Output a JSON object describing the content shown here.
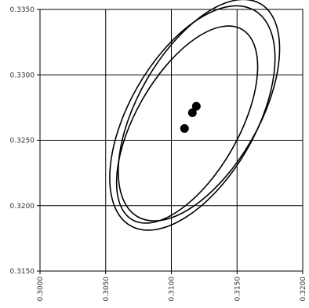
{
  "chart_data": {
    "type": "scatter",
    "xlim": [
      0.3,
      0.32
    ],
    "ylim": [
      0.315,
      0.335
    ],
    "x_ticks": [
      "0.3000",
      "0.3050",
      "0.3100",
      "0.3150",
      "0.3200"
    ],
    "y_ticks": [
      "0.3150",
      "0.3200",
      "0.3250",
      "0.3300",
      "0.3350"
    ],
    "grid": true,
    "points": [
      {
        "x": 0.311,
        "y": 0.3259
      },
      {
        "x": 0.3116,
        "y": 0.3271
      },
      {
        "x": 0.3119,
        "y": 0.3276
      }
    ],
    "ellipses": [
      {
        "cx": 0.3116,
        "cy": 0.3267,
        "rx": 0.0048,
        "ry": 0.0095,
        "angle_deg": 30
      },
      {
        "cx": 0.3121,
        "cy": 0.3273,
        "rx": 0.0046,
        "ry": 0.0094,
        "angle_deg": 30
      },
      {
        "cx": 0.3112,
        "cy": 0.3262,
        "rx": 0.0039,
        "ry": 0.0084,
        "angle_deg": 30
      }
    ]
  }
}
